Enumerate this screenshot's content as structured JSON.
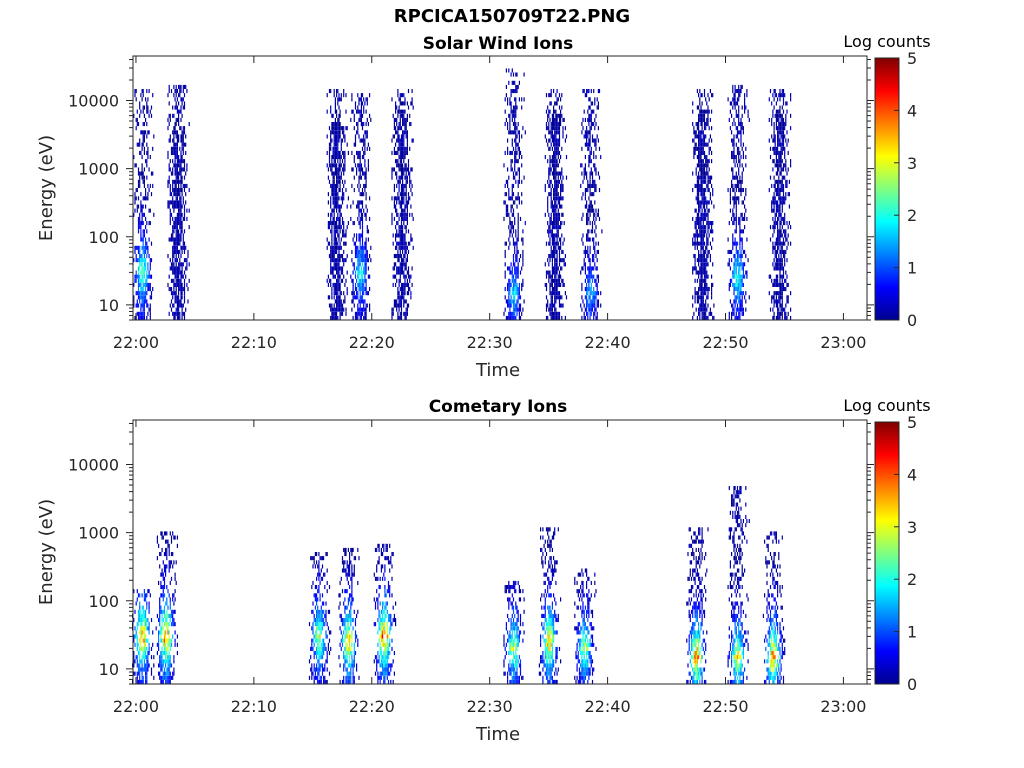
{
  "page_title": "RPCICA150709T22.PNG",
  "chart_data": [
    {
      "type": "heatmap",
      "title": "Solar Wind Ions",
      "xlabel": "Time",
      "ylabel": "Energy (eV)",
      "xlim": [
        "21:59:45",
        "23:02:00"
      ],
      "ylim": [
        6,
        45000
      ],
      "yscale": "log",
      "xticks": [
        "22:00",
        "22:10",
        "22:20",
        "22:30",
        "22:40",
        "22:50",
        "23:00"
      ],
      "yticks": [
        {
          "value": 10,
          "label": "10"
        },
        {
          "value": 100,
          "label": "100"
        },
        {
          "value": 1000,
          "label": "1000"
        },
        {
          "value": 10000,
          "label": "10000"
        }
      ],
      "colorbar": {
        "label": "Log counts",
        "range": [
          0,
          5
        ],
        "ticks": [
          "0",
          "1",
          "2",
          "3",
          "4",
          "5"
        ],
        "colormap": "jet"
      },
      "grid": false,
      "bursts": [
        {
          "time": "22:00:30",
          "low_energy_peak_eV": 30,
          "peak_log_counts": 2.5,
          "high_energy_extent_eV": 15000
        },
        {
          "time": "22:03:30",
          "low_energy_peak_eV": 1500,
          "peak_log_counts": 0.3,
          "high_energy_extent_eV": 17000
        },
        {
          "time": "22:17:00",
          "low_energy_peak_eV": 2000,
          "peak_log_counts": 0.3,
          "high_energy_extent_eV": 14000
        },
        {
          "time": "22:19:00",
          "low_energy_peak_eV": 30,
          "peak_log_counts": 2.0,
          "high_energy_extent_eV": 13000
        },
        {
          "time": "22:22:30",
          "low_energy_peak_eV": 3000,
          "peak_log_counts": 0.3,
          "high_energy_extent_eV": 15000
        },
        {
          "time": "22:32:00",
          "low_energy_peak_eV": 15,
          "peak_log_counts": 1.8,
          "high_energy_extent_eV": 30000
        },
        {
          "time": "22:35:30",
          "low_energy_peak_eV": 2500,
          "peak_log_counts": 0.3,
          "high_energy_extent_eV": 14000
        },
        {
          "time": "22:38:30",
          "low_energy_peak_eV": 15,
          "peak_log_counts": 1.6,
          "high_energy_extent_eV": 15000
        },
        {
          "time": "22:48:00",
          "low_energy_peak_eV": 3000,
          "peak_log_counts": 0.3,
          "high_energy_extent_eV": 14000
        },
        {
          "time": "22:51:00",
          "low_energy_peak_eV": 25,
          "peak_log_counts": 2.2,
          "high_energy_extent_eV": 16000
        },
        {
          "time": "22:54:30",
          "low_energy_peak_eV": 2500,
          "peak_log_counts": 0.3,
          "high_energy_extent_eV": 14000
        }
      ]
    },
    {
      "type": "heatmap",
      "title": "Cometary Ions",
      "xlabel": "Time",
      "ylabel": "Energy (eV)",
      "xlim": [
        "21:59:45",
        "23:02:00"
      ],
      "ylim": [
        6,
        45000
      ],
      "yscale": "log",
      "xticks": [
        "22:00",
        "22:10",
        "22:20",
        "22:30",
        "22:40",
        "22:50",
        "23:00"
      ],
      "yticks": [
        {
          "value": 10,
          "label": "10"
        },
        {
          "value": 100,
          "label": "100"
        },
        {
          "value": 1000,
          "label": "1000"
        },
        {
          "value": 10000,
          "label": "10000"
        }
      ],
      "colorbar": {
        "label": "Log counts",
        "range": [
          0,
          5
        ],
        "ticks": [
          "0",
          "1",
          "2",
          "3",
          "4",
          "5"
        ],
        "colormap": "jet"
      },
      "grid": false,
      "bursts": [
        {
          "time": "22:00:30",
          "low_energy_peak_eV": 30,
          "peak_log_counts": 3.8,
          "high_energy_extent_eV": 150
        },
        {
          "time": "22:02:30",
          "low_energy_peak_eV": 30,
          "peak_log_counts": 4.0,
          "high_energy_extent_eV": 1000
        },
        {
          "time": "22:15:30",
          "low_energy_peak_eV": 30,
          "peak_log_counts": 3.0,
          "high_energy_extent_eV": 500
        },
        {
          "time": "22:18:00",
          "low_energy_peak_eV": 25,
          "peak_log_counts": 3.5,
          "high_energy_extent_eV": 600
        },
        {
          "time": "22:21:00",
          "low_energy_peak_eV": 30,
          "peak_log_counts": 4.0,
          "high_energy_extent_eV": 700
        },
        {
          "time": "22:32:00",
          "low_energy_peak_eV": 20,
          "peak_log_counts": 3.0,
          "high_energy_extent_eV": 200
        },
        {
          "time": "22:35:00",
          "low_energy_peak_eV": 25,
          "peak_log_counts": 3.5,
          "high_energy_extent_eV": 1200
        },
        {
          "time": "22:38:00",
          "low_energy_peak_eV": 20,
          "peak_log_counts": 2.8,
          "high_energy_extent_eV": 300
        },
        {
          "time": "22:47:30",
          "low_energy_peak_eV": 15,
          "peak_log_counts": 3.8,
          "high_energy_extent_eV": 1200
        },
        {
          "time": "22:51:00",
          "low_energy_peak_eV": 15,
          "peak_log_counts": 3.2,
          "high_energy_extent_eV": 5000
        },
        {
          "time": "22:54:00",
          "low_energy_peak_eV": 15,
          "peak_log_counts": 3.8,
          "high_energy_extent_eV": 1000
        }
      ]
    }
  ]
}
